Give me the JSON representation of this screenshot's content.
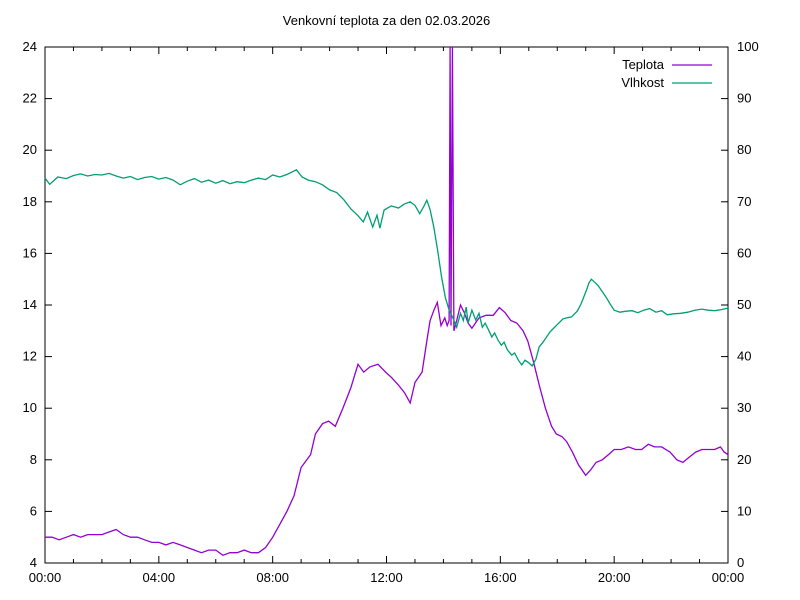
{
  "chart_data": {
    "type": "line",
    "title": "Venkovní teplota za den 02.03.2026",
    "background": "#ffffff",
    "border_color": "#000000",
    "grid": false,
    "legend_position": "top-right-inside",
    "x_axis": {
      "tick_labels": [
        "00:00",
        "04:00",
        "08:00",
        "12:00",
        "16:00",
        "20:00",
        "00:00"
      ],
      "minor_ticks_every_hours": 1,
      "range_minutes": [
        0,
        1440
      ]
    },
    "y_left": {
      "ticks": [
        4,
        6,
        8,
        10,
        12,
        14,
        16,
        18,
        20,
        22,
        24
      ],
      "range": [
        4,
        24
      ]
    },
    "y_right": {
      "ticks": [
        0,
        10,
        20,
        30,
        40,
        50,
        60,
        70,
        80,
        90,
        100
      ],
      "range": [
        0,
        100
      ]
    },
    "series": [
      {
        "name": "Teplota",
        "axis": "left",
        "color": "#9400d3",
        "points": [
          [
            0,
            5.0
          ],
          [
            15,
            5.0
          ],
          [
            30,
            4.9
          ],
          [
            45,
            5.0
          ],
          [
            60,
            5.1
          ],
          [
            75,
            5.0
          ],
          [
            90,
            5.1
          ],
          [
            105,
            5.1
          ],
          [
            120,
            5.1
          ],
          [
            135,
            5.2
          ],
          [
            150,
            5.3
          ],
          [
            165,
            5.1
          ],
          [
            180,
            5.0
          ],
          [
            195,
            5.0
          ],
          [
            210,
            4.9
          ],
          [
            225,
            4.8
          ],
          [
            240,
            4.8
          ],
          [
            255,
            4.7
          ],
          [
            270,
            4.8
          ],
          [
            285,
            4.7
          ],
          [
            300,
            4.6
          ],
          [
            315,
            4.5
          ],
          [
            330,
            4.4
          ],
          [
            345,
            4.5
          ],
          [
            360,
            4.5
          ],
          [
            375,
            4.3
          ],
          [
            390,
            4.4
          ],
          [
            405,
            4.4
          ],
          [
            420,
            4.5
          ],
          [
            435,
            4.4
          ],
          [
            450,
            4.4
          ],
          [
            465,
            4.6
          ],
          [
            480,
            5.0
          ],
          [
            495,
            5.5
          ],
          [
            510,
            6.0
          ],
          [
            525,
            6.6
          ],
          [
            540,
            7.7
          ],
          [
            552,
            8.0
          ],
          [
            560,
            8.2
          ],
          [
            570,
            9.0
          ],
          [
            585,
            9.4
          ],
          [
            598,
            9.5
          ],
          [
            612,
            9.3
          ],
          [
            628,
            10.0
          ],
          [
            645,
            10.8
          ],
          [
            660,
            11.7
          ],
          [
            672,
            11.4
          ],
          [
            685,
            11.6
          ],
          [
            702,
            11.7
          ],
          [
            718,
            11.4
          ],
          [
            730,
            11.2
          ],
          [
            745,
            10.9
          ],
          [
            758,
            10.6
          ],
          [
            770,
            10.2
          ],
          [
            780,
            11.0
          ],
          [
            795,
            11.4
          ],
          [
            805,
            12.6
          ],
          [
            812,
            13.4
          ],
          [
            820,
            13.8
          ],
          [
            827,
            14.1
          ],
          [
            835,
            13.2
          ],
          [
            843,
            13.5
          ],
          [
            848,
            13.2
          ],
          [
            852,
            13.4
          ],
          [
            854,
            24
          ],
          [
            856,
            13.2
          ],
          [
            859,
            24
          ],
          [
            862,
            13.0
          ],
          [
            868,
            13.4
          ],
          [
            876,
            14.0
          ],
          [
            884,
            13.7
          ],
          [
            892,
            13.3
          ],
          [
            900,
            13.1
          ],
          [
            915,
            13.5
          ],
          [
            930,
            13.6
          ],
          [
            945,
            13.6
          ],
          [
            958,
            13.9
          ],
          [
            970,
            13.7
          ],
          [
            982,
            13.4
          ],
          [
            995,
            13.3
          ],
          [
            1008,
            13.0
          ],
          [
            1018,
            12.6
          ],
          [
            1030,
            11.8
          ],
          [
            1042,
            10.9
          ],
          [
            1055,
            10.0
          ],
          [
            1068,
            9.3
          ],
          [
            1078,
            9.0
          ],
          [
            1090,
            8.9
          ],
          [
            1100,
            8.7
          ],
          [
            1112,
            8.3
          ],
          [
            1125,
            7.8
          ],
          [
            1140,
            7.4
          ],
          [
            1150,
            7.6
          ],
          [
            1162,
            7.9
          ],
          [
            1175,
            8.0
          ],
          [
            1188,
            8.2
          ],
          [
            1200,
            8.4
          ],
          [
            1215,
            8.4
          ],
          [
            1230,
            8.5
          ],
          [
            1245,
            8.4
          ],
          [
            1258,
            8.4
          ],
          [
            1272,
            8.6
          ],
          [
            1285,
            8.5
          ],
          [
            1300,
            8.5
          ],
          [
            1318,
            8.3
          ],
          [
            1332,
            8.0
          ],
          [
            1345,
            7.9
          ],
          [
            1358,
            8.1
          ],
          [
            1372,
            8.3
          ],
          [
            1385,
            8.4
          ],
          [
            1400,
            8.4
          ],
          [
            1412,
            8.4
          ],
          [
            1424,
            8.5
          ],
          [
            1432,
            8.3
          ],
          [
            1440,
            8.2
          ]
        ]
      },
      {
        "name": "Vlhkost",
        "axis": "right",
        "color": "#009e73",
        "points": [
          [
            0,
            74.6
          ],
          [
            10,
            73.4
          ],
          [
            27,
            74.8
          ],
          [
            45,
            74.5
          ],
          [
            60,
            75.1
          ],
          [
            75,
            75.4
          ],
          [
            90,
            75.0
          ],
          [
            105,
            75.3
          ],
          [
            120,
            75.2
          ],
          [
            135,
            75.5
          ],
          [
            150,
            75.0
          ],
          [
            165,
            74.6
          ],
          [
            180,
            74.9
          ],
          [
            195,
            74.3
          ],
          [
            210,
            74.7
          ],
          [
            225,
            74.9
          ],
          [
            240,
            74.4
          ],
          [
            255,
            74.7
          ],
          [
            270,
            74.2
          ],
          [
            285,
            73.3
          ],
          [
            300,
            74.0
          ],
          [
            315,
            74.5
          ],
          [
            330,
            73.8
          ],
          [
            345,
            74.2
          ],
          [
            360,
            73.6
          ],
          [
            375,
            74.1
          ],
          [
            390,
            73.5
          ],
          [
            405,
            73.9
          ],
          [
            420,
            73.7
          ],
          [
            435,
            74.2
          ],
          [
            450,
            74.6
          ],
          [
            465,
            74.3
          ],
          [
            480,
            75.2
          ],
          [
            495,
            74.8
          ],
          [
            510,
            75.3
          ],
          [
            530,
            76.2
          ],
          [
            542,
            74.8
          ],
          [
            555,
            74.2
          ],
          [
            570,
            73.9
          ],
          [
            585,
            73.3
          ],
          [
            600,
            72.3
          ],
          [
            615,
            71.8
          ],
          [
            630,
            70.4
          ],
          [
            645,
            68.6
          ],
          [
            660,
            67.3
          ],
          [
            671,
            66.1
          ],
          [
            680,
            68.0
          ],
          [
            691,
            65.1
          ],
          [
            700,
            67.4
          ],
          [
            706,
            64.9
          ],
          [
            715,
            68.4
          ],
          [
            730,
            69.2
          ],
          [
            745,
            68.8
          ],
          [
            758,
            69.6
          ],
          [
            770,
            70.0
          ],
          [
            780,
            69.3
          ],
          [
            790,
            67.7
          ],
          [
            798,
            69.0
          ],
          [
            805,
            70.3
          ],
          [
            812,
            68.5
          ],
          [
            820,
            65.0
          ],
          [
            828,
            60.5
          ],
          [
            836,
            55.5
          ],
          [
            844,
            51.5
          ],
          [
            852,
            49.0
          ],
          [
            860,
            47.5
          ],
          [
            868,
            45.7
          ],
          [
            876,
            48.4
          ],
          [
            882,
            47.0
          ],
          [
            888,
            49.6
          ],
          [
            892,
            46.5
          ],
          [
            900,
            49.0
          ],
          [
            908,
            47.1
          ],
          [
            915,
            48.4
          ],
          [
            922,
            45.7
          ],
          [
            928,
            46.5
          ],
          [
            935,
            45.2
          ],
          [
            942,
            43.8
          ],
          [
            948,
            44.6
          ],
          [
            955,
            43.2
          ],
          [
            962,
            42.2
          ],
          [
            968,
            42.8
          ],
          [
            975,
            41.3
          ],
          [
            984,
            40.3
          ],
          [
            990,
            40.7
          ],
          [
            998,
            39.3
          ],
          [
            1005,
            38.4
          ],
          [
            1012,
            39.3
          ],
          [
            1020,
            38.8
          ],
          [
            1027,
            38.2
          ],
          [
            1035,
            39.5
          ],
          [
            1042,
            41.9
          ],
          [
            1050,
            42.8
          ],
          [
            1065,
            44.8
          ],
          [
            1080,
            46.2
          ],
          [
            1092,
            47.3
          ],
          [
            1100,
            47.5
          ],
          [
            1110,
            47.7
          ],
          [
            1122,
            48.8
          ],
          [
            1130,
            50.2
          ],
          [
            1135,
            51.3
          ],
          [
            1142,
            53.0
          ],
          [
            1147,
            54.3
          ],
          [
            1152,
            55.0
          ],
          [
            1158,
            54.5
          ],
          [
            1166,
            53.8
          ],
          [
            1175,
            52.6
          ],
          [
            1185,
            51.2
          ],
          [
            1192,
            50.1
          ],
          [
            1200,
            49.0
          ],
          [
            1212,
            48.6
          ],
          [
            1225,
            48.8
          ],
          [
            1238,
            48.9
          ],
          [
            1250,
            48.5
          ],
          [
            1262,
            49.0
          ],
          [
            1275,
            49.3
          ],
          [
            1288,
            48.6
          ],
          [
            1300,
            48.9
          ],
          [
            1312,
            48.1
          ],
          [
            1325,
            48.3
          ],
          [
            1340,
            48.4
          ],
          [
            1355,
            48.6
          ],
          [
            1370,
            49.0
          ],
          [
            1385,
            49.2
          ],
          [
            1398,
            49.0
          ],
          [
            1412,
            48.9
          ],
          [
            1426,
            49.1
          ],
          [
            1440,
            49.4
          ]
        ]
      }
    ]
  }
}
